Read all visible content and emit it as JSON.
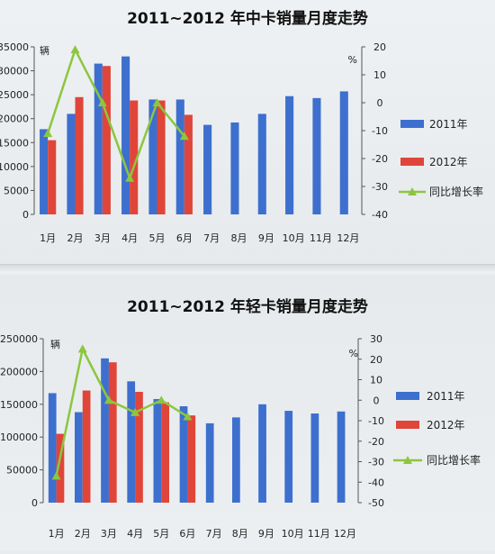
{
  "charts": [
    {
      "title": "2011~2012 年中卡销量月度走势",
      "left_unit": "辆",
      "right_unit": "%",
      "left_ticks": [
        "0",
        "5000",
        "10000",
        "15000",
        "20000",
        "25000",
        "30000",
        "35000"
      ],
      "right_ticks": [
        "-40",
        "-30",
        "-20",
        "-10",
        "0",
        "10",
        "20"
      ],
      "legend": [
        "2011年",
        "2012年",
        "同比增长率"
      ]
    },
    {
      "title": "2011~2012 年轻卡销量月度走势",
      "left_unit": "辆",
      "right_unit": "%",
      "left_ticks": [
        "0",
        "50000",
        "100000",
        "150000",
        "200000",
        "250000"
      ],
      "right_ticks": [
        "-50",
        "-40",
        "-30",
        "-20",
        "-10",
        "0",
        "10",
        "20",
        "30"
      ],
      "legend": [
        "2011年",
        "2012年",
        "同比增长率"
      ]
    }
  ],
  "colors": {
    "s2011": "#3d6fcf",
    "s2012": "#e0453a",
    "growth": "#8cc63f"
  },
  "chart_data": [
    {
      "type": "bar",
      "title": "2011~2012 年中卡销量月度走势",
      "categories": [
        "1月",
        "2月",
        "3月",
        "4月",
        "5月",
        "6月",
        "7月",
        "8月",
        "9月",
        "10月",
        "11月",
        "12月"
      ],
      "ylim": [
        0,
        35000
      ],
      "y2lim": [
        -40,
        20
      ],
      "series": [
        {
          "name": "2011年",
          "axis": "left",
          "values": [
            17800,
            21000,
            31500,
            33000,
            24000,
            24000,
            18700,
            19200,
            21000,
            24700,
            24300,
            25700
          ]
        },
        {
          "name": "2012年",
          "axis": "left",
          "values": [
            15500,
            24500,
            31000,
            23800,
            23800,
            20800,
            null,
            null,
            null,
            null,
            null,
            null
          ]
        },
        {
          "name": "同比增长率",
          "axis": "right",
          "type": "line",
          "values": [
            -11,
            19,
            0,
            -27,
            0,
            -12,
            null,
            null,
            null,
            null,
            null,
            null
          ]
        }
      ]
    },
    {
      "type": "bar",
      "title": "2011~2012 年轻卡销量月度走势",
      "categories": [
        "1月",
        "2月",
        "3月",
        "4月",
        "5月",
        "6月",
        "7月",
        "8月",
        "9月",
        "10月",
        "11月",
        "12月"
      ],
      "ylim": [
        0,
        250000
      ],
      "y2lim": [
        -50,
        30
      ],
      "series": [
        {
          "name": "2011年",
          "axis": "left",
          "values": [
            167000,
            138000,
            220000,
            185000,
            158000,
            147000,
            121000,
            130000,
            150000,
            140000,
            136000,
            139000
          ]
        },
        {
          "name": "2012年",
          "axis": "left",
          "values": [
            105000,
            171000,
            214000,
            169000,
            153000,
            133000,
            null,
            null,
            null,
            null,
            null,
            null
          ]
        },
        {
          "name": "同比增长率",
          "axis": "right",
          "type": "line",
          "values": [
            -37,
            25,
            0,
            -6,
            0,
            -8,
            null,
            null,
            null,
            null,
            null,
            null
          ]
        }
      ]
    }
  ]
}
